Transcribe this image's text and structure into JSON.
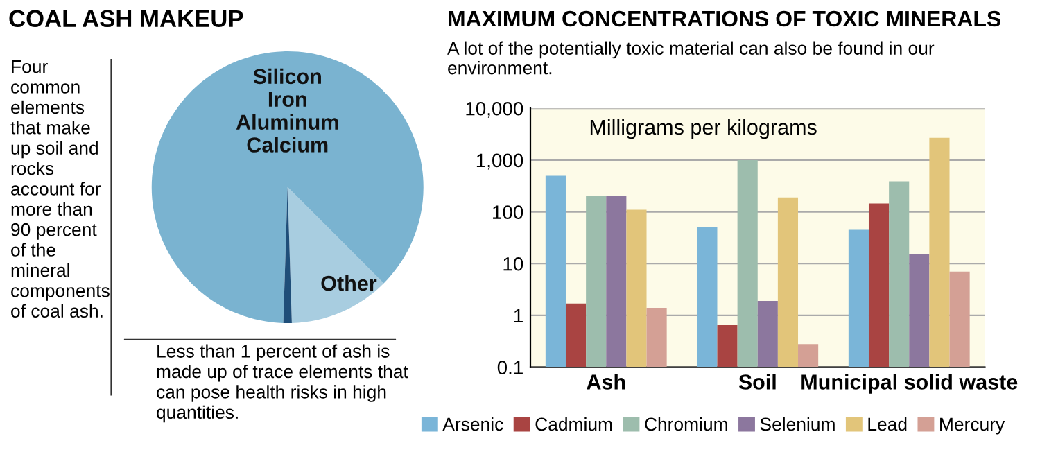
{
  "chart_data": [
    {
      "type": "pie",
      "title": "COAL ASH MAKEUP",
      "categories": [
        "Silicon\nIron\nAluminum\nCalcium",
        "Other",
        null
      ],
      "values": [
        87,
        12,
        1
      ],
      "colors": [
        "#7ab3d0",
        "#a8cde0",
        "#1f4e79"
      ],
      "annotations": [
        "Four common elements that make up soil and rocks account for more than 90 percent of the mineral components of coal ash.",
        "Less than 1 percent of ash is made up of trace elements that can pose health risks in high quantities."
      ]
    },
    {
      "type": "bar",
      "title": "MAXIMUM CONCENTRATIONS OF TOXIC MINERALS",
      "subtitle": "A lot of the potentially toxic material can also be found in our environment.",
      "ylabel": "Milligrams per kilograms",
      "categories": [
        "Ash",
        "Soil",
        "Municipal solid waste"
      ],
      "series": [
        {
          "name": "Arsenic",
          "color": "#7ab5d8",
          "values": [
            500,
            50,
            45
          ]
        },
        {
          "name": "Cadmium",
          "color": "#a94442",
          "values": [
            1.7,
            0.65,
            145
          ]
        },
        {
          "name": "Chromium",
          "color": "#9dbdad",
          "values": [
            200,
            1000,
            390
          ]
        },
        {
          "name": "Selenium",
          "color": "#8c779e",
          "values": [
            200,
            1.9,
            15
          ]
        },
        {
          "name": "Lead",
          "color": "#e2c57a",
          "values": [
            110,
            190,
            2700
          ]
        },
        {
          "name": "Mercury",
          "color": "#d4a095",
          "values": [
            1.4,
            0.28,
            7
          ]
        }
      ],
      "log": "y",
      "ylim": [
        0.1,
        10000
      ],
      "yticks": [
        0.1,
        1,
        10,
        100,
        {
          "value": 1000,
          "label": "1,000"
        },
        {
          "value": 10000,
          "label": "10,000"
        }
      ],
      "grid": "y",
      "legend": "bottom"
    }
  ]
}
